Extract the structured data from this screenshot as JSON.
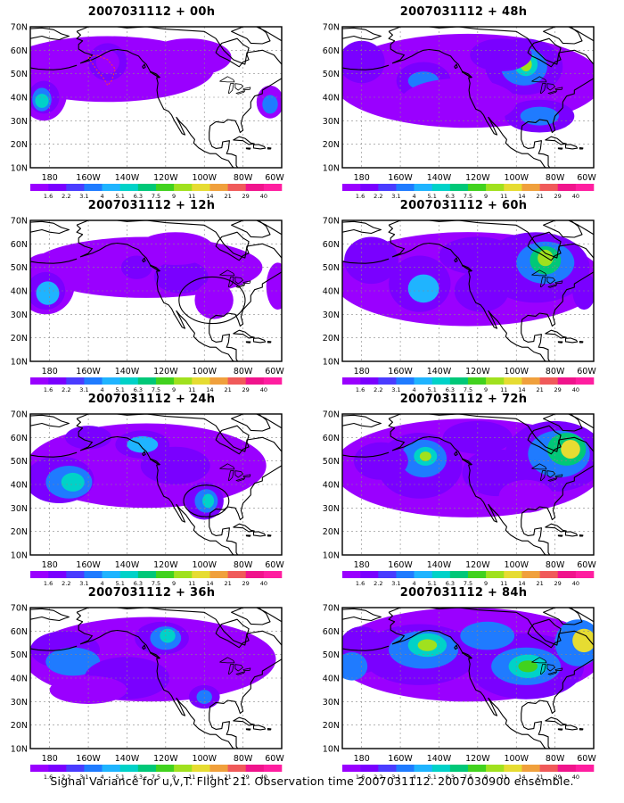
{
  "figure": {
    "caption": "Signal Variance for u,v,T. Flight 21. Observation time 2007031112. 2007030900 ensemble."
  },
  "axes": {
    "lat_labels": [
      "70N",
      "60N",
      "50N",
      "40N",
      "30N",
      "20N",
      "10N"
    ],
    "lon_labels": [
      "180",
      "160W",
      "140W",
      "120W",
      "100W",
      "80W",
      "60W"
    ],
    "lat_range": [
      10,
      70
    ],
    "lon_range": [
      -190,
      -60
    ]
  },
  "colorbar": {
    "labels": [
      "1.6",
      "2.2",
      "3.1",
      "4",
      "5.1",
      "6.3",
      "7.5",
      "9",
      "11",
      "14",
      "21",
      "29",
      "40"
    ],
    "colors": [
      "#9a00ff",
      "#7a00ff",
      "#4a3cff",
      "#1f7bff",
      "#1fb4ff",
      "#00d2c8",
      "#00c878",
      "#41d21e",
      "#a0e11e",
      "#e6dc32",
      "#f0a03c",
      "#f05a5a",
      "#f0148c",
      "#ff1ea0"
    ]
  },
  "panels": [
    {
      "title": "2007031112 + 00h"
    },
    {
      "title": "2007031112 + 48h"
    },
    {
      "title": "2007031112 + 12h"
    },
    {
      "title": "2007031112 + 60h"
    },
    {
      "title": "2007031112 + 24h"
    },
    {
      "title": "2007031112 + 72h"
    },
    {
      "title": "2007031112 + 36h"
    },
    {
      "title": "2007031112 + 84h"
    }
  ]
}
